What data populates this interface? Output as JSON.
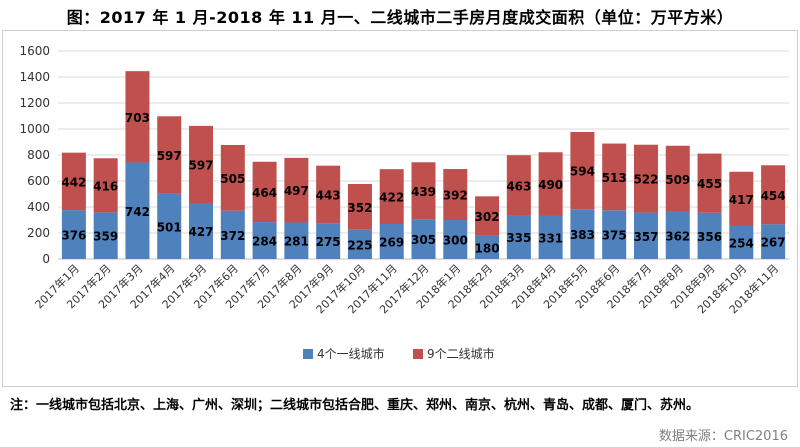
{
  "title": "图：2017 年 1 月-2018 年 11 月一、二线城市二手房月度成交面积（单位：万平方米）",
  "note": "注：一线城市包括北京、上海、广州、深圳；二线城市包括合肥、重庆、郑州、南京、杭州、青岛、成都、厦门、苏州。",
  "source": "数据来源：CRIC2016",
  "colors": {
    "tier1": "#4f81bd",
    "tier2": "#c0504d",
    "grid": "#d9d9d9",
    "axis": "#bfbfbf"
  },
  "chart_data": {
    "type": "bar",
    "stacked": true,
    "categories": [
      "2017年1月",
      "2017年2月",
      "2017年3月",
      "2017年4月",
      "2017年5月",
      "2017年6月",
      "2017年7月",
      "2017年8月",
      "2017年9月",
      "2017年10月",
      "2017年11月",
      "2017年12月",
      "2018年1月",
      "2018年2月",
      "2018年3月",
      "2018年4月",
      "2018年5月",
      "2018年6月",
      "2018年7月",
      "2018年8月",
      "2018年9月",
      "2018年10月",
      "2018年11月"
    ],
    "series": [
      {
        "name": "4个一线城市",
        "values": [
          376,
          359,
          742,
          501,
          427,
          372,
          284,
          281,
          275,
          225,
          269,
          305,
          300,
          180,
          335,
          331,
          383,
          375,
          357,
          362,
          356,
          254,
          267
        ]
      },
      {
        "name": "9个二线城市",
        "values": [
          442,
          416,
          703,
          597,
          597,
          505,
          464,
          497,
          443,
          352,
          422,
          439,
          392,
          302,
          463,
          490,
          594,
          513,
          522,
          509,
          455,
          417,
          454
        ]
      }
    ],
    "ylim": [
      0,
      1600
    ],
    "yticks": [
      0,
      200,
      400,
      600,
      800,
      1000,
      1200,
      1400,
      1600
    ],
    "grid": true,
    "legend": "bottom",
    "xlabel": "",
    "ylabel": ""
  }
}
